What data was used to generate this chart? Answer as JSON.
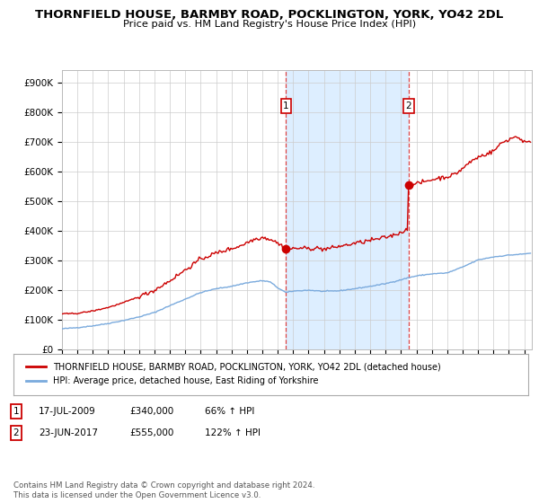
{
  "title_line1": "THORNFIELD HOUSE, BARMBY ROAD, POCKLINGTON, YORK, YO42 2DL",
  "title_line2": "Price paid vs. HM Land Registry's House Price Index (HPI)",
  "ylabel_ticks": [
    "£0",
    "£100K",
    "£200K",
    "£300K",
    "£400K",
    "£500K",
    "£600K",
    "£700K",
    "£800K",
    "£900K"
  ],
  "ytick_vals": [
    0,
    100000,
    200000,
    300000,
    400000,
    500000,
    600000,
    700000,
    800000,
    900000
  ],
  "ylim": [
    0,
    940000
  ],
  "xlim_start": 1995.0,
  "xlim_end": 2025.5,
  "purchase1_x": 2009.54,
  "purchase1_y": 340000,
  "purchase1_label": "1",
  "purchase2_x": 2017.48,
  "purchase2_y": 555000,
  "purchase2_label": "2",
  "shading_x1": 2009.54,
  "shading_x2": 2017.48,
  "house_color": "#cc0000",
  "hpi_color": "#7aaadd",
  "shading_color": "#ddeeff",
  "vline_color": "#dd4444",
  "legend_house": "THORNFIELD HOUSE, BARMBY ROAD, POCKLINGTON, YORK, YO42 2DL (detached house)",
  "legend_hpi": "HPI: Average price, detached house, East Riding of Yorkshire",
  "table_row1": [
    "1",
    "17-JUL-2009",
    "£340,000",
    "66% ↑ HPI"
  ],
  "table_row2": [
    "2",
    "23-JUN-2017",
    "£555,000",
    "122% ↑ HPI"
  ],
  "footer": "Contains HM Land Registry data © Crown copyright and database right 2024.\nThis data is licensed under the Open Government Licence v3.0.",
  "background_color": "#ffffff",
  "grid_color": "#cccccc"
}
